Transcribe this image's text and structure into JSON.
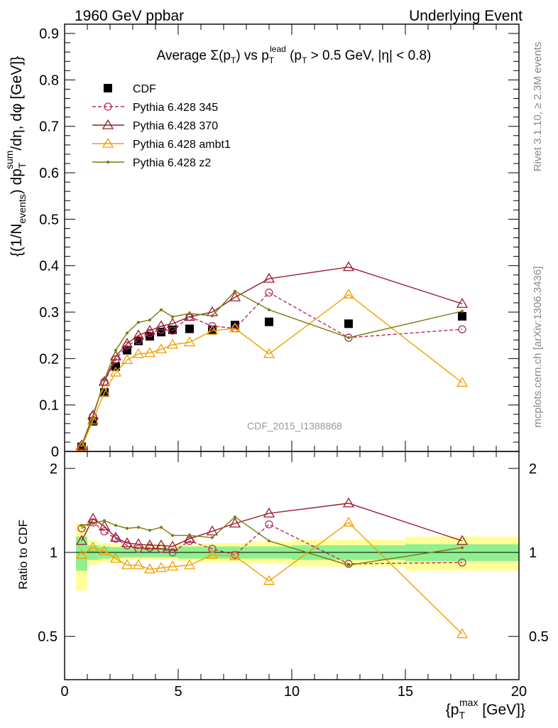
{
  "header": {
    "left": "1960 GeV ppbar",
    "right": "Underlying Event"
  },
  "side_labels": {
    "rivet": "Rivet 3.1.10, ≥ 2.3M events",
    "mcplots": "mcplots.cern.ch [arXiv:1306.3436]"
  },
  "chart_data": [
    {
      "type": "line",
      "title": "Average Σ(p_T) vs p_T^lead (p_T > 0.5 GeV, |η| < 0.8)",
      "title_parts": {
        "a": "Average ",
        "sigma": "Σ",
        "b": "(p",
        "c": ")  vs  p",
        "lead": "lead",
        "d": " (p",
        "e": " > 0.5 GeV, |η| < 0.8)",
        "sub": "T"
      },
      "xlabel": "{p_T^max [GeV]}",
      "ylabel": "{(1/N_events) dp_T^sum/dη, dφ [GeV]}",
      "ylabel_parts": {
        "a": "{(1/N",
        "events": "events",
        "b": ") dp",
        "sum": "sum",
        "c": "/dη, dφ [GeV]}",
        "sub": "T"
      },
      "xlim": [
        0,
        20
      ],
      "ylim": [
        0,
        0.92
      ],
      "yticks": [
        "0",
        "0.1",
        "0.2",
        "0.3",
        "0.4",
        "0.5",
        "0.6",
        "0.7",
        "0.8",
        "0.9"
      ],
      "annotation": "CDF_2015_I1388868",
      "legend_position": "top-left",
      "series": [
        {
          "name": "CDF",
          "color": "#000000",
          "marker": "square",
          "x": [
            0.75,
            1.25,
            1.75,
            2.25,
            2.75,
            3.25,
            3.75,
            4.25,
            4.75,
            5.5,
            6.5,
            7.5,
            9.0,
            12.5,
            17.5
          ],
          "y": [
            0.01,
            0.065,
            0.127,
            0.183,
            0.218,
            0.238,
            0.248,
            0.257,
            0.262,
            0.264,
            0.262,
            0.272,
            0.279,
            0.275,
            0.291
          ]
        },
        {
          "name": "Pythia 6.428 345",
          "color": "#b03060",
          "marker": "circle",
          "dashed": true,
          "x": [
            0.75,
            1.25,
            1.75,
            2.25,
            2.75,
            3.25,
            3.75,
            4.25,
            4.75,
            5.5,
            6.5,
            7.5,
            9.0,
            12.5,
            17.5
          ],
          "y": [
            0.012,
            0.076,
            0.15,
            0.198,
            0.228,
            0.24,
            0.255,
            0.262,
            0.26,
            0.29,
            0.27,
            0.265,
            0.342,
            0.245,
            0.263
          ]
        },
        {
          "name": "Pythia 6.428 370",
          "color": "#9b1b30",
          "marker": "triangle",
          "x": [
            0.75,
            1.25,
            1.75,
            2.25,
            2.75,
            3.25,
            3.75,
            4.25,
            4.75,
            5.5,
            6.5,
            7.5,
            9.0,
            12.5,
            17.5
          ],
          "y": [
            0.013,
            0.078,
            0.15,
            0.205,
            0.232,
            0.25,
            0.26,
            0.27,
            0.275,
            0.29,
            0.3,
            0.332,
            0.372,
            0.397,
            0.318
          ]
        },
        {
          "name": "Pythia 6.428 ambt1",
          "color": "#f0a000",
          "marker": "triangle",
          "x": [
            0.75,
            1.25,
            1.75,
            2.25,
            2.75,
            3.25,
            3.75,
            4.25,
            4.75,
            5.5,
            6.5,
            7.5,
            9.0,
            12.5,
            17.5
          ],
          "y": [
            0.01,
            0.067,
            0.127,
            0.17,
            0.197,
            0.21,
            0.212,
            0.22,
            0.23,
            0.235,
            0.26,
            0.265,
            0.21,
            0.338,
            0.148
          ]
        },
        {
          "name": "Pythia 6.428 z2",
          "color": "#7a7a10",
          "marker": "dot",
          "x": [
            0.75,
            1.25,
            1.75,
            2.25,
            2.75,
            3.25,
            3.75,
            4.25,
            4.75,
            5.5,
            6.5,
            7.5,
            9.0,
            12.5,
            17.5
          ],
          "y": [
            0.012,
            0.074,
            0.153,
            0.218,
            0.255,
            0.278,
            0.283,
            0.305,
            0.29,
            0.297,
            0.292,
            0.345,
            0.305,
            0.245,
            0.302
          ]
        }
      ]
    },
    {
      "type": "line",
      "ylabel": "Ratio to CDF",
      "xlim": [
        0,
        20
      ],
      "ylim": [
        0.35,
        2.3
      ],
      "xticks": [
        "0",
        "5",
        "10",
        "15",
        "20"
      ],
      "yticks": [
        "0.5",
        "1",
        "2"
      ],
      "reference_line": 1,
      "bands": {
        "x_edges": [
          0.5,
          1.0,
          1.5,
          2.0,
          2.5,
          3.0,
          3.5,
          4.0,
          4.5,
          5.0,
          6.0,
          7.0,
          8.0,
          10.0,
          15.0,
          20.0
        ],
        "inner_half_width": [
          0.14,
          0.06,
          0.05,
          0.045,
          0.04,
          0.04,
          0.04,
          0.04,
          0.04,
          0.05,
          0.05,
          0.05,
          0.05,
          0.06,
          0.07
        ],
        "outer_half_width": [
          0.27,
          0.1,
          0.08,
          0.07,
          0.06,
          0.06,
          0.06,
          0.06,
          0.06,
          0.07,
          0.08,
          0.08,
          0.09,
          0.11,
          0.14
        ],
        "inner_color": "#90f090",
        "outer_color": "#ffff99"
      },
      "series": [
        {
          "name": "Pythia 6.428 345",
          "color": "#b03060",
          "marker": "circle",
          "dashed": true,
          "x": [
            0.75,
            1.25,
            1.75,
            2.25,
            2.75,
            3.25,
            3.75,
            4.25,
            4.75,
            5.5,
            6.5,
            7.5,
            9.0,
            12.5,
            17.5
          ],
          "y": [
            1.22,
            1.28,
            1.19,
            1.12,
            1.06,
            1.03,
            1.04,
            1.03,
            1.0,
            1.1,
            1.03,
            0.98,
            1.26,
            0.91,
            0.92
          ]
        },
        {
          "name": "Pythia 6.428 370",
          "color": "#9b1b30",
          "marker": "triangle",
          "x": [
            0.75,
            1.25,
            1.75,
            2.25,
            2.75,
            3.25,
            3.75,
            4.25,
            4.75,
            5.5,
            6.5,
            7.5,
            9.0,
            12.5,
            17.5
          ],
          "y": [
            1.1,
            1.32,
            1.24,
            1.13,
            1.08,
            1.07,
            1.06,
            1.06,
            1.05,
            1.12,
            1.19,
            1.27,
            1.38,
            1.5,
            1.1
          ]
        },
        {
          "name": "Pythia 6.428 ambt1",
          "color": "#f0a000",
          "marker": "triangle",
          "x": [
            0.75,
            1.25,
            1.75,
            2.25,
            2.75,
            3.25,
            3.75,
            4.25,
            4.75,
            5.5,
            6.5,
            7.5,
            9.0,
            12.5,
            17.5
          ],
          "y": [
            0.98,
            1.04,
            1.01,
            0.95,
            0.9,
            0.9,
            0.87,
            0.88,
            0.89,
            0.9,
            0.98,
            0.97,
            0.79,
            1.28,
            0.51
          ]
        },
        {
          "name": "Pythia 6.428 z2",
          "color": "#7a7a10",
          "marker": "dot",
          "x": [
            0.75,
            1.25,
            1.75,
            2.25,
            2.75,
            3.25,
            3.75,
            4.25,
            4.75,
            5.5,
            6.5,
            7.5,
            9.0,
            12.5,
            17.5
          ],
          "y": [
            1.25,
            1.27,
            1.3,
            1.25,
            1.22,
            1.23,
            1.2,
            1.23,
            1.15,
            1.15,
            1.13,
            1.34,
            1.1,
            0.9,
            1.04
          ]
        }
      ]
    }
  ]
}
